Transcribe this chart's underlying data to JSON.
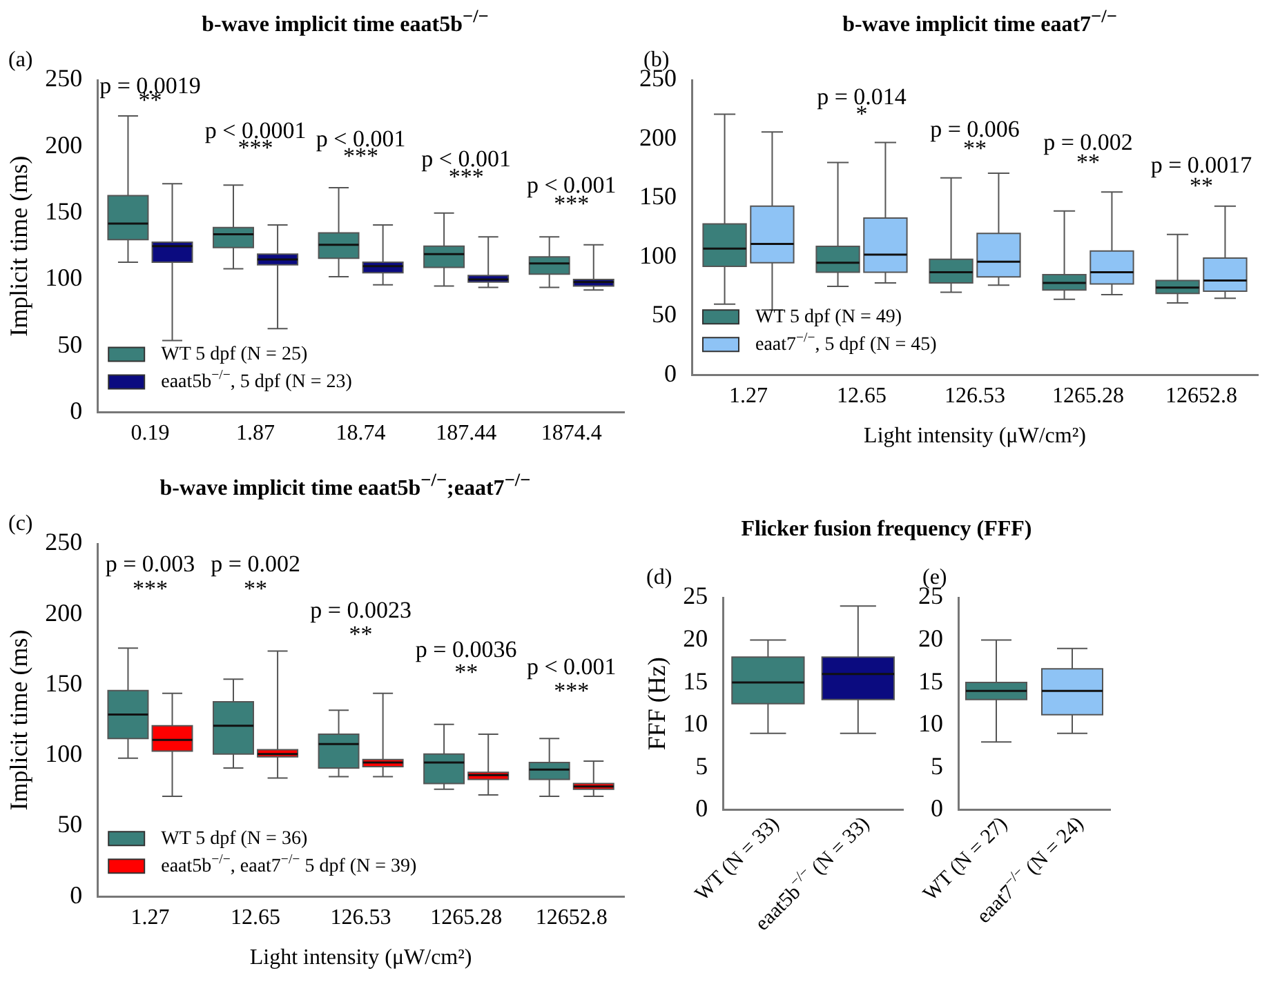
{
  "chart_data": [
    {
      "type": "box",
      "title": "b-wave implicit time eaat5b$^{−/−}$",
      "ylabel": "Implicit time (ms)",
      "categories": [
        "0.19",
        "1.87",
        "18.74",
        "187.44",
        "1874.4"
      ],
      "ylim": [
        0,
        250
      ],
      "yticks": [
        0,
        50,
        100,
        150,
        200,
        250
      ],
      "grid": false,
      "legend": "bottom left",
      "series": [
        {
          "name": "WT 5 dpf (N = 25)",
          "color": "#3a7f7a",
          "boxes": [
            {
              "low": 113,
              "q1": 130,
              "median": 142,
              "q3": 163,
              "high": 223
            },
            {
              "low": 108,
              "q1": 124,
              "median": 134,
              "q3": 139,
              "high": 171
            },
            {
              "low": 102,
              "q1": 116,
              "median": 126,
              "q3": 135,
              "high": 169
            },
            {
              "low": 95,
              "q1": 109,
              "median": 119,
              "q3": 125,
              "high": 150
            },
            {
              "low": 94,
              "q1": 104,
              "median": 112,
              "q3": 117,
              "high": 132
            }
          ]
        },
        {
          "name": "eaat5b$^{−/−}$, 5 dpf (N = 23)",
          "color": "#0b0b80",
          "boxes": [
            {
              "low": 54,
              "q1": 113,
              "median": 125,
              "q3": 128,
              "high": 172
            },
            {
              "low": 63,
              "q1": 111,
              "median": 115,
              "q3": 119,
              "high": 141
            },
            {
              "low": 96,
              "q1": 105,
              "median": 110,
              "q3": 113,
              "high": 141
            },
            {
              "low": 94,
              "q1": 98,
              "median": 100,
              "q3": 103,
              "high": 132
            },
            {
              "low": 92,
              "q1": 95,
              "median": 98,
              "q3": 100,
              "high": 126
            }
          ]
        }
      ],
      "annotations": [
        "(a)",
        "p = 0.0019",
        "**",
        "p < 0.0001",
        "***",
        "p < 0.001",
        "***",
        "p < 0.001",
        "***",
        "p < 0.001",
        "***"
      ]
    },
    {
      "type": "box",
      "title": "b-wave implicit time eaat7$^{−/−}$",
      "xlabel": "Light intensity (μW/cm²)",
      "categories": [
        "1.27",
        "12.65",
        "126.53",
        "1265.28",
        "12652.8"
      ],
      "ylim": [
        0,
        250
      ],
      "yticks": [
        0,
        50,
        100,
        150,
        200,
        250
      ],
      "grid": false,
      "legend": "bottom left",
      "series": [
        {
          "name": "WT 5 dpf (N = 49)",
          "color": "#3a7f7a",
          "boxes": [
            {
              "low": 60,
              "q1": 92,
              "median": 107,
              "q3": 128,
              "high": 221
            },
            {
              "low": 75,
              "q1": 87,
              "median": 95,
              "q3": 109,
              "high": 180
            },
            {
              "low": 70,
              "q1": 78,
              "median": 87,
              "q3": 98,
              "high": 167
            },
            {
              "low": 64,
              "q1": 72,
              "median": 78,
              "q3": 85,
              "high": 139
            },
            {
              "low": 61,
              "q1": 69,
              "median": 74,
              "q3": 80,
              "high": 119
            }
          ]
        },
        {
          "name": "eaat7$^{−/−}$, 5 dpf (N = 45)",
          "color": "#8ec3f5",
          "boxes": [
            {
              "low": 55,
              "q1": 95,
              "median": 111,
              "q3": 143,
              "high": 206
            },
            {
              "low": 78,
              "q1": 87,
              "median": 102,
              "q3": 133,
              "high": 197
            },
            {
              "low": 76,
              "q1": 83,
              "median": 96,
              "q3": 120,
              "high": 171
            },
            {
              "low": 68,
              "q1": 77,
              "median": 87,
              "q3": 105,
              "high": 155
            },
            {
              "low": 65,
              "q1": 71,
              "median": 80,
              "q3": 99,
              "high": 143
            }
          ]
        }
      ],
      "annotations": [
        "(b)",
        "p = 0.014",
        "*",
        "p = 0.006",
        "**",
        "p = 0.002",
        "**",
        "p = 0.0017",
        "**"
      ]
    },
    {
      "type": "box",
      "title": "b-wave implicit time eaat5b$^{−/−}$;eaat7$^{−/−}$",
      "xlabel": "Light intensity (μW/cm²)",
      "ylabel": "Implicit time (ms)",
      "categories": [
        "1.27",
        "12.65",
        "126.53",
        "1265.28",
        "12652.8"
      ],
      "ylim": [
        0,
        250
      ],
      "yticks": [
        0,
        50,
        100,
        150,
        200,
        250
      ],
      "grid": false,
      "legend": "bottom left",
      "series": [
        {
          "name": "WT 5 dpf (N = 36)",
          "color": "#3a7f7a",
          "boxes": [
            {
              "low": 98,
              "q1": 112,
              "median": 129,
              "q3": 146,
              "high": 176
            },
            {
              "low": 91,
              "q1": 101,
              "median": 121,
              "q3": 138,
              "high": 154
            },
            {
              "low": 85,
              "q1": 91,
              "median": 108,
              "q3": 115,
              "high": 132
            },
            {
              "low": 76,
              "q1": 80,
              "median": 95,
              "q3": 101,
              "high": 122
            },
            {
              "low": 71,
              "q1": 83,
              "median": 90,
              "q3": 95,
              "high": 112
            }
          ]
        },
        {
          "name": "eaat5b$^{−/−}$, eaat7$^{−/−}$ 5 dpf (N = 39)",
          "color": "#ff0000",
          "boxes": [
            {
              "low": 71,
              "q1": 103,
              "median": 111,
              "q3": 121,
              "high": 144
            },
            {
              "low": 84,
              "q1": 99,
              "median": 101,
              "q3": 104,
              "high": 174
            },
            {
              "low": 85,
              "q1": 92,
              "median": 95,
              "q3": 97,
              "high": 144
            },
            {
              "low": 72,
              "q1": 83,
              "median": 86,
              "q3": 88,
              "high": 115
            },
            {
              "low": 71,
              "q1": 76,
              "median": 78,
              "q3": 80,
              "high": 96
            }
          ]
        }
      ],
      "annotations": [
        "(c)",
        "p = 0.003",
        "***",
        "p = 0.002",
        "**",
        "p = 0.0023",
        "**",
        "p = 0.0036",
        "**",
        "p < 0.001",
        "***"
      ]
    },
    {
      "type": "box",
      "title": "Flicker fusion frequency (FFF)",
      "ylabel": "FFF (Hz)",
      "categories": [
        "WT (N = 33)",
        "eaat5b$^{−/−}$ (N = 33)"
      ],
      "ylim": [
        0,
        25
      ],
      "yticks": [
        0,
        5,
        10,
        15,
        20,
        25
      ],
      "grid": false,
      "series": [
        {
          "colors": [
            "#3a7f7a",
            "#0b0b80"
          ],
          "boxes": [
            {
              "low": 9,
              "q1": 12.5,
              "median": 15,
              "q3": 18,
              "high": 20
            },
            {
              "low": 9,
              "q1": 13,
              "median": 16,
              "q3": 18,
              "high": 24
            }
          ]
        }
      ],
      "annotations": [
        "(d)"
      ]
    },
    {
      "type": "box",
      "categories": [
        "WT (N = 27)",
        "eaat7$^{−/−}$ (N = 24)"
      ],
      "ylim": [
        0,
        25
      ],
      "yticks": [
        0,
        5,
        10,
        15,
        20,
        25
      ],
      "grid": false,
      "series": [
        {
          "colors": [
            "#3a7f7a",
            "#8ec3f5"
          ],
          "boxes": [
            {
              "low": 8,
              "q1": 13,
              "median": 14,
              "q3": 15,
              "high": 20
            },
            {
              "low": 9,
              "q1": 11.2,
              "median": 14,
              "q3": 16.6,
              "high": 19
            }
          ]
        }
      ],
      "annotations": [
        "(e)"
      ]
    }
  ]
}
